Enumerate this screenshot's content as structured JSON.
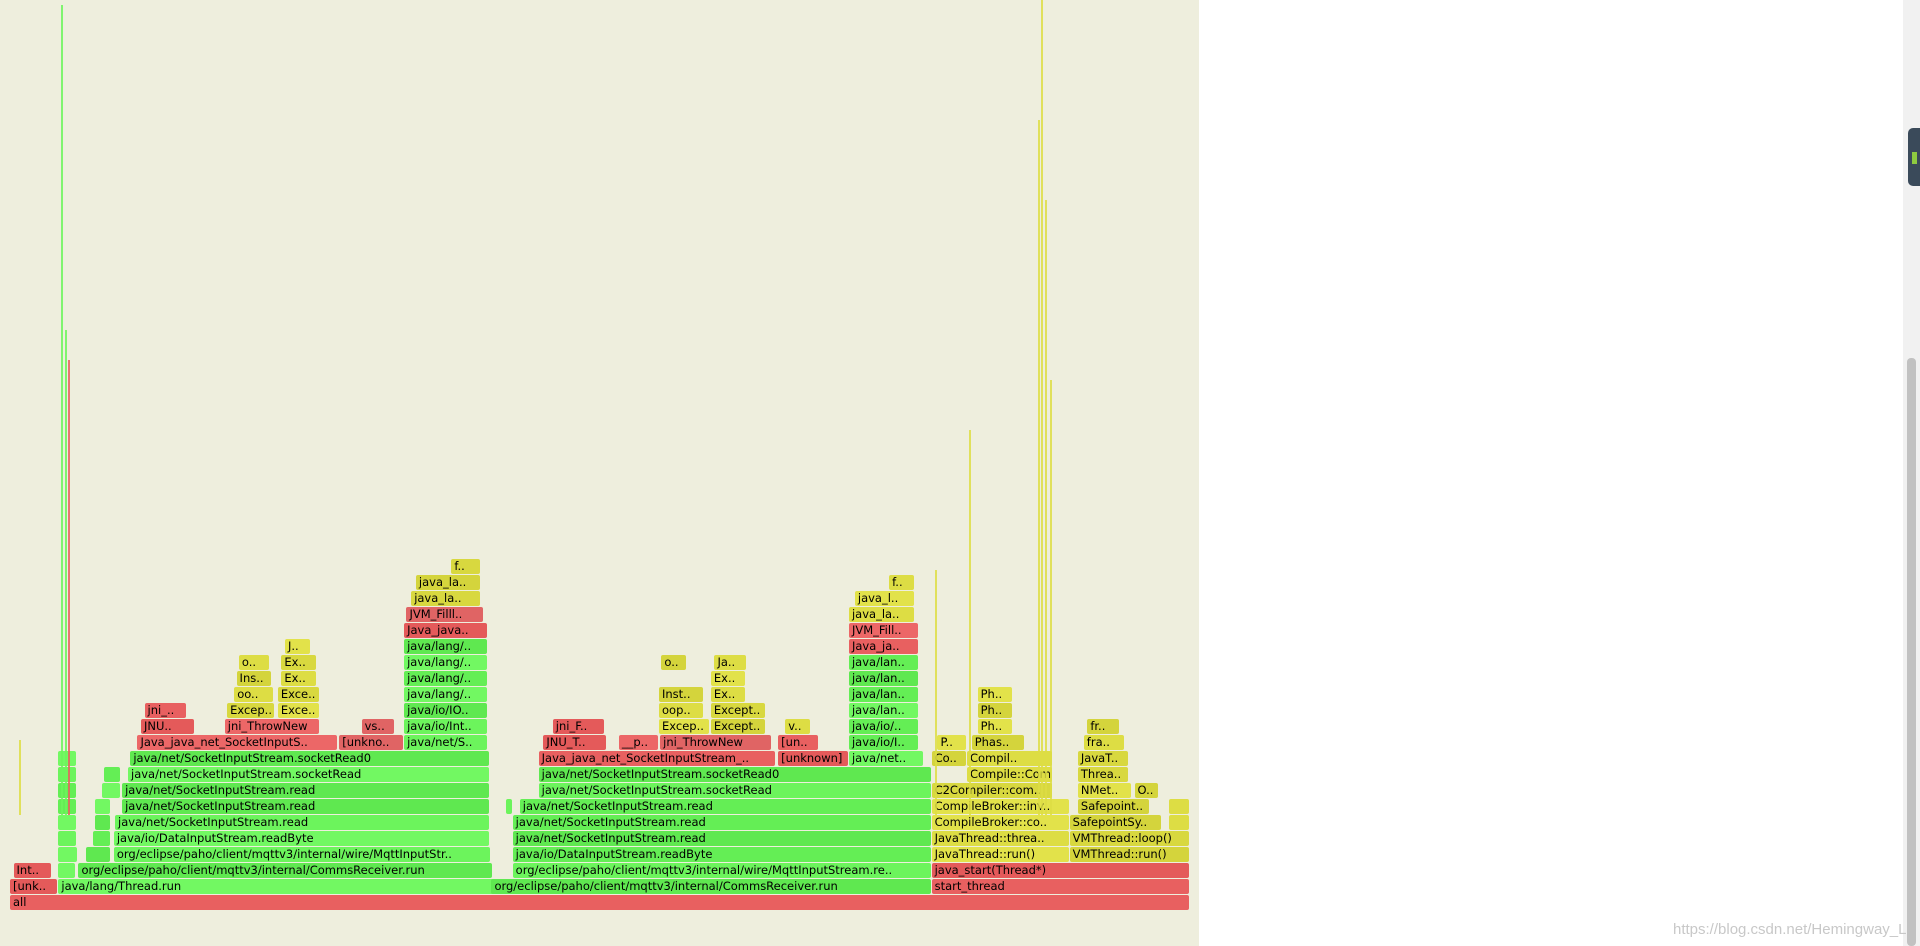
{
  "watermark": "https://blog.csdn.net/Hemingway_L",
  "colors": {
    "background": "#eeeedd",
    "java": "#6cf45c",
    "jvm": "#dddd44",
    "native": "#e86060"
  },
  "frames": [
    {
      "label": "all",
      "x": 0.0,
      "w": 1.0,
      "d": 0,
      "c": "native"
    },
    {
      "label": "[unk..",
      "x": 0.0,
      "w": 0.041,
      "d": 1,
      "c": "native"
    },
    {
      "label": "java/lang/Thread.run",
      "x": 0.041,
      "w": 0.375,
      "d": 1,
      "c": "java"
    },
    {
      "label": "org/eclipse/paho/client/mqttv3/internal/CommsReceiver.run",
      "x": 0.408,
      "w": 0.373,
      "d": 1,
      "c": "java"
    },
    {
      "label": "start_thread",
      "x": 0.781,
      "w": 0.219,
      "d": 1,
      "c": "native"
    },
    {
      "label": "Int..",
      "x": 0.003,
      "w": 0.033,
      "d": 2,
      "c": "native"
    },
    {
      "label": "",
      "x": 0.041,
      "w": 0.015,
      "d": 2,
      "c": "java"
    },
    {
      "label": "org/eclipse/paho/client/mqttv3/internal/CommsReceiver.run",
      "x": 0.058,
      "w": 0.351,
      "d": 2,
      "c": "java"
    },
    {
      "label": "org/eclipse/paho/client/mqttv3/internal/wire/MqttInputStream.re..",
      "x": 0.426,
      "w": 0.355,
      "d": 2,
      "c": "java"
    },
    {
      "label": "java_start(Thread*)",
      "x": 0.781,
      "w": 0.219,
      "d": 2,
      "c": "native"
    },
    {
      "label": "",
      "x": 0.041,
      "w": 0.017,
      "d": 3,
      "c": "java"
    },
    {
      "label": "",
      "x": 0.064,
      "w": 0.022,
      "d": 3,
      "c": "java"
    },
    {
      "label": "org/eclipse/paho/client/mqttv3/internal/wire/MqttInputStr..",
      "x": 0.088,
      "w": 0.32,
      "d": 3,
      "c": "java"
    },
    {
      "label": "java/io/DataInputStream.readByte",
      "x": 0.426,
      "w": 0.355,
      "d": 3,
      "c": "java"
    },
    {
      "label": "JavaThread::run()",
      "x": 0.781,
      "w": 0.117,
      "d": 3,
      "c": "jvm"
    },
    {
      "label": "VMThread::run()",
      "x": 0.898,
      "w": 0.102,
      "d": 3,
      "c": "jvm"
    },
    {
      "label": "",
      "x": 0.041,
      "w": 0.016,
      "d": 4,
      "c": "java"
    },
    {
      "label": "",
      "x": 0.07,
      "w": 0.016,
      "d": 4,
      "c": "java"
    },
    {
      "label": "java/io/DataInputStream.readByte",
      "x": 0.088,
      "w": 0.319,
      "d": 4,
      "c": "java"
    },
    {
      "label": "java/net/SocketInputStream.read",
      "x": 0.426,
      "w": 0.355,
      "d": 4,
      "c": "java"
    },
    {
      "label": "JavaThread::threa..",
      "x": 0.781,
      "w": 0.117,
      "d": 4,
      "c": "jvm"
    },
    {
      "label": "VMThread::loop()",
      "x": 0.898,
      "w": 0.102,
      "d": 4,
      "c": "jvm"
    },
    {
      "label": "",
      "x": 0.041,
      "w": 0.016,
      "d": 5,
      "c": "java"
    },
    {
      "label": "",
      "x": 0.072,
      "w": 0.014,
      "d": 5,
      "c": "java"
    },
    {
      "label": "java/net/SocketInputStream.read",
      "x": 0.089,
      "w": 0.318,
      "d": 5,
      "c": "java"
    },
    {
      "label": "java/net/SocketInputStream.read",
      "x": 0.426,
      "w": 0.355,
      "d": 5,
      "c": "java"
    },
    {
      "label": "CompileBroker::co..",
      "x": 0.781,
      "w": 0.117,
      "d": 5,
      "c": "jvm"
    },
    {
      "label": "SafepointSy..",
      "x": 0.898,
      "w": 0.078,
      "d": 5,
      "c": "jvm"
    },
    {
      "label": "",
      "x": 0.982,
      "w": 0.018,
      "d": 5,
      "c": "jvm"
    },
    {
      "label": "",
      "x": 0.041,
      "w": 0.016,
      "d": 6,
      "c": "java"
    },
    {
      "label": "",
      "x": 0.072,
      "w": 0.014,
      "d": 6,
      "c": "java"
    },
    {
      "label": "java/net/SocketInputStream.read",
      "x": 0.095,
      "w": 0.312,
      "d": 6,
      "c": "java"
    },
    {
      "label": "",
      "x": 0.42,
      "w": 0.006,
      "d": 6,
      "c": "java"
    },
    {
      "label": "java/net/SocketInputStream.read",
      "x": 0.432,
      "w": 0.349,
      "d": 6,
      "c": "java"
    },
    {
      "label": "CompileBroker::inv..",
      "x": 0.781,
      "w": 0.117,
      "d": 6,
      "c": "jvm"
    },
    {
      "label": "Safepoint..",
      "x": 0.905,
      "w": 0.061,
      "d": 6,
      "c": "jvm"
    },
    {
      "label": "",
      "x": 0.982,
      "w": 0.018,
      "d": 6,
      "c": "jvm"
    },
    {
      "label": "",
      "x": 0.041,
      "w": 0.016,
      "d": 7,
      "c": "java"
    },
    {
      "label": "",
      "x": 0.078,
      "w": 0.016,
      "d": 7,
      "c": "java"
    },
    {
      "label": "java/net/SocketInputStream.read",
      "x": 0.095,
      "w": 0.312,
      "d": 7,
      "c": "java"
    },
    {
      "label": "java/net/SocketInputStream.socketRead",
      "x": 0.448,
      "w": 0.333,
      "d": 7,
      "c": "java"
    },
    {
      "label": "C2Compiler::com..",
      "x": 0.781,
      "w": 0.103,
      "d": 7,
      "c": "jvm"
    },
    {
      "label": "NMet..",
      "x": 0.905,
      "w": 0.046,
      "d": 7,
      "c": "jvm"
    },
    {
      "label": "O..",
      "x": 0.953,
      "w": 0.021,
      "d": 7,
      "c": "jvm"
    },
    {
      "label": "",
      "x": 0.041,
      "w": 0.016,
      "d": 8,
      "c": "java"
    },
    {
      "label": "",
      "x": 0.08,
      "w": 0.014,
      "d": 8,
      "c": "java"
    },
    {
      "label": "java/net/SocketInputStream.socketRead",
      "x": 0.1,
      "w": 0.307,
      "d": 8,
      "c": "java"
    },
    {
      "label": "java/net/SocketInputStream.socketRead0",
      "x": 0.448,
      "w": 0.333,
      "d": 8,
      "c": "java"
    },
    {
      "label": "Compile::Compil..",
      "x": 0.811,
      "w": 0.073,
      "d": 8,
      "c": "jvm"
    },
    {
      "label": "Threa..",
      "x": 0.905,
      "w": 0.043,
      "d": 8,
      "c": "jvm"
    },
    {
      "label": "",
      "x": 0.041,
      "w": 0.016,
      "d": 9,
      "c": "java"
    },
    {
      "label": "java/net/SocketInputStream.socketRead0",
      "x": 0.102,
      "w": 0.305,
      "d": 9,
      "c": "java"
    },
    {
      "label": "Java_java_net_SocketInputStream_..",
      "x": 0.448,
      "w": 0.201,
      "d": 9,
      "c": "native"
    },
    {
      "label": "[unknown]",
      "x": 0.651,
      "w": 0.06,
      "d": 9,
      "c": "native"
    },
    {
      "label": "java/net..",
      "x": 0.711,
      "w": 0.064,
      "d": 9,
      "c": "java"
    },
    {
      "label": "Co..",
      "x": 0.781,
      "w": 0.03,
      "d": 9,
      "c": "jvm"
    },
    {
      "label": "Compil..",
      "x": 0.811,
      "w": 0.073,
      "d": 9,
      "c": "jvm"
    },
    {
      "label": "JavaT..",
      "x": 0.905,
      "w": 0.043,
      "d": 9,
      "c": "jvm"
    },
    {
      "label": "Java_java_net_SocketInputS..",
      "x": 0.108,
      "w": 0.17,
      "d": 10,
      "c": "native"
    },
    {
      "label": "[unkno..",
      "x": 0.279,
      "w": 0.055,
      "d": 10,
      "c": "native"
    },
    {
      "label": "java/net/S..",
      "x": 0.334,
      "w": 0.071,
      "d": 10,
      "c": "java"
    },
    {
      "label": "JNU_T..",
      "x": 0.452,
      "w": 0.054,
      "d": 10,
      "c": "native"
    },
    {
      "label": "__p..",
      "x": 0.516,
      "w": 0.034,
      "d": 10,
      "c": "native"
    },
    {
      "label": "jni_ThrowNew",
      "x": 0.551,
      "w": 0.095,
      "d": 10,
      "c": "native"
    },
    {
      "label": "[un..",
      "x": 0.651,
      "w": 0.035,
      "d": 10,
      "c": "native"
    },
    {
      "label": "java/io/I..",
      "x": 0.711,
      "w": 0.059,
      "d": 10,
      "c": "java"
    },
    {
      "label": "P..",
      "x": 0.786,
      "w": 0.025,
      "d": 10,
      "c": "jvm"
    },
    {
      "label": "Phas..",
      "x": 0.815,
      "w": 0.045,
      "d": 10,
      "c": "jvm"
    },
    {
      "label": "fra..",
      "x": 0.91,
      "w": 0.035,
      "d": 10,
      "c": "jvm"
    },
    {
      "label": "JNU..",
      "x": 0.111,
      "w": 0.046,
      "d": 11,
      "c": "native"
    },
    {
      "label": "jni_ThrowNew",
      "x": 0.182,
      "w": 0.081,
      "d": 11,
      "c": "native"
    },
    {
      "label": "vs..",
      "x": 0.298,
      "w": 0.028,
      "d": 11,
      "c": "native"
    },
    {
      "label": "java/io/Int..",
      "x": 0.334,
      "w": 0.071,
      "d": 11,
      "c": "java"
    },
    {
      "label": "jni_F..",
      "x": 0.46,
      "w": 0.044,
      "d": 11,
      "c": "native"
    },
    {
      "label": "Excep..",
      "x": 0.55,
      "w": 0.043,
      "d": 11,
      "c": "jvm"
    },
    {
      "label": "Except..",
      "x": 0.594,
      "w": 0.047,
      "d": 11,
      "c": "jvm"
    },
    {
      "label": "v..",
      "x": 0.657,
      "w": 0.022,
      "d": 11,
      "c": "jvm"
    },
    {
      "label": "java/io/..",
      "x": 0.711,
      "w": 0.059,
      "d": 11,
      "c": "java"
    },
    {
      "label": "Ph..",
      "x": 0.82,
      "w": 0.03,
      "d": 11,
      "c": "jvm"
    },
    {
      "label": "fr..",
      "x": 0.913,
      "w": 0.028,
      "d": 11,
      "c": "jvm"
    },
    {
      "label": "jni_..",
      "x": 0.114,
      "w": 0.036,
      "d": 12,
      "c": "native"
    },
    {
      "label": "Excep..",
      "x": 0.184,
      "w": 0.041,
      "d": 12,
      "c": "jvm"
    },
    {
      "label": "Exce..",
      "x": 0.227,
      "w": 0.036,
      "d": 12,
      "c": "jvm"
    },
    {
      "label": "java/io/IO..",
      "x": 0.334,
      "w": 0.071,
      "d": 12,
      "c": "java"
    },
    {
      "label": "oop..",
      "x": 0.55,
      "w": 0.038,
      "d": 12,
      "c": "jvm"
    },
    {
      "label": "Except..",
      "x": 0.594,
      "w": 0.047,
      "d": 12,
      "c": "jvm"
    },
    {
      "label": "java/lan..",
      "x": 0.711,
      "w": 0.059,
      "d": 12,
      "c": "java"
    },
    {
      "label": "Ph..",
      "x": 0.82,
      "w": 0.03,
      "d": 12,
      "c": "jvm"
    },
    {
      "label": "oo..",
      "x": 0.19,
      "w": 0.034,
      "d": 13,
      "c": "jvm"
    },
    {
      "label": "Exce..",
      "x": 0.227,
      "w": 0.036,
      "d": 13,
      "c": "jvm"
    },
    {
      "label": "java/lang/..",
      "x": 0.334,
      "w": 0.071,
      "d": 13,
      "c": "java"
    },
    {
      "label": "Inst..",
      "x": 0.55,
      "w": 0.038,
      "d": 13,
      "c": "jvm"
    },
    {
      "label": "Ex..",
      "x": 0.594,
      "w": 0.03,
      "d": 13,
      "c": "jvm"
    },
    {
      "label": "java/lan..",
      "x": 0.711,
      "w": 0.059,
      "d": 13,
      "c": "java"
    },
    {
      "label": "Ph..",
      "x": 0.82,
      "w": 0.03,
      "d": 13,
      "c": "jvm"
    },
    {
      "label": "Ins..",
      "x": 0.192,
      "w": 0.03,
      "d": 14,
      "c": "jvm"
    },
    {
      "label": "Ex..",
      "x": 0.23,
      "w": 0.03,
      "d": 14,
      "c": "jvm"
    },
    {
      "label": "java/lang/..",
      "x": 0.334,
      "w": 0.071,
      "d": 14,
      "c": "java"
    },
    {
      "label": "Ex..",
      "x": 0.594,
      "w": 0.03,
      "d": 14,
      "c": "jvm"
    },
    {
      "label": "java/lan..",
      "x": 0.711,
      "w": 0.059,
      "d": 14,
      "c": "java"
    },
    {
      "label": "o..",
      "x": 0.194,
      "w": 0.026,
      "d": 15,
      "c": "jvm"
    },
    {
      "label": "Ex..",
      "x": 0.23,
      "w": 0.03,
      "d": 15,
      "c": "jvm"
    },
    {
      "label": "java/lang/..",
      "x": 0.334,
      "w": 0.071,
      "d": 15,
      "c": "java"
    },
    {
      "label": "o..",
      "x": 0.552,
      "w": 0.022,
      "d": 15,
      "c": "jvm"
    },
    {
      "label": "Ja..",
      "x": 0.597,
      "w": 0.028,
      "d": 15,
      "c": "jvm"
    },
    {
      "label": "java/lan..",
      "x": 0.711,
      "w": 0.059,
      "d": 15,
      "c": "java"
    },
    {
      "label": "J..",
      "x": 0.233,
      "w": 0.022,
      "d": 16,
      "c": "jvm"
    },
    {
      "label": "java/lang/..",
      "x": 0.334,
      "w": 0.071,
      "d": 16,
      "c": "java"
    },
    {
      "label": "Java_ja..",
      "x": 0.711,
      "w": 0.059,
      "d": 16,
      "c": "native"
    },
    {
      "label": "Java_java..",
      "x": 0.334,
      "w": 0.071,
      "d": 17,
      "c": "native"
    },
    {
      "label": "JVM_Fill..",
      "x": 0.711,
      "w": 0.059,
      "d": 17,
      "c": "native"
    },
    {
      "label": "JVM_Filll..",
      "x": 0.336,
      "w": 0.066,
      "d": 18,
      "c": "native"
    },
    {
      "label": "java_la..",
      "x": 0.711,
      "w": 0.056,
      "d": 18,
      "c": "jvm"
    },
    {
      "label": "java_la..",
      "x": 0.34,
      "w": 0.059,
      "d": 19,
      "c": "jvm"
    },
    {
      "label": "java_l..",
      "x": 0.716,
      "w": 0.051,
      "d": 19,
      "c": "jvm"
    },
    {
      "label": "java_la..",
      "x": 0.344,
      "w": 0.055,
      "d": 20,
      "c": "jvm"
    },
    {
      "label": "f..",
      "x": 0.745,
      "w": 0.022,
      "d": 20,
      "c": "jvm"
    },
    {
      "label": "f..",
      "x": 0.374,
      "w": 0.025,
      "d": 21,
      "c": "jvm"
    }
  ]
}
